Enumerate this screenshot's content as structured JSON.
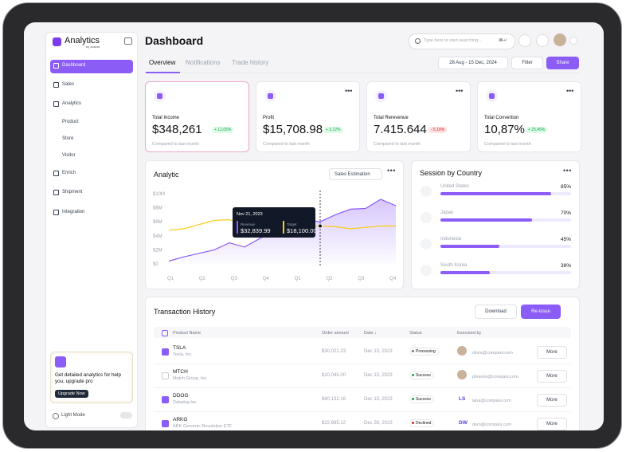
{
  "sidebar": {
    "brand": "Analytics",
    "brand_sub": "by anavid",
    "nav": [
      "Dashboard",
      "Sales",
      "Analytics",
      "Product",
      "Store",
      "Visitor",
      "Enrich",
      "Shipment",
      "Integration"
    ],
    "promo": {
      "text": "Get detailed analytics for help you, upgrade pro",
      "button": "Upgrade Now"
    },
    "theme": "Light Mode"
  },
  "header": {
    "title": "Dashboard",
    "search": "Type here to start searching...",
    "shortcut": "⌘+/",
    "tabs": [
      "Overview",
      "Notifications",
      "Trade history"
    ],
    "date_range": "28 Aug - 15 Dec, 2024",
    "filter": "Filter",
    "share": "Share"
  },
  "kpis": [
    {
      "label": "Total Income",
      "value": "$348,261",
      "change": "+ 12,05%",
      "note": "Compared to last month"
    },
    {
      "label": "Profit",
      "value": "$15,708.98",
      "change": "+ 3,12%",
      "note": "Compared to last month"
    },
    {
      "label": "Total Rerevenue",
      "value": "7.415.644",
      "change": "- 5,18%",
      "note": "Compared to last month"
    },
    {
      "label": "Total Convertion",
      "value": "10,87%",
      "change": "+ 25,45%",
      "note": "Compared to last month"
    }
  ],
  "analytic": {
    "type": "line",
    "title": "Analytic",
    "dropdown": "Sales Estimation",
    "categories": [
      "Q1",
      "Q2",
      "Q3",
      "Q4",
      "Q1",
      "Q2",
      "Q3",
      "Q4"
    ],
    "ylim": [
      0,
      10
    ],
    "yticks": [
      {
        "value": 10,
        "label": "$10M"
      },
      {
        "value": 8,
        "label": "$8M"
      },
      {
        "value": 6,
        "label": "$6M"
      },
      {
        "value": 4,
        "label": "$4M"
      },
      {
        "value": 2,
        "label": "$2M"
      },
      {
        "value": 0,
        "label": "$0"
      }
    ],
    "series": [
      {
        "name": "Revenue",
        "color": "#8b5cf6",
        "values": [
          0.4,
          1.0,
          1.5,
          2.0,
          3.0,
          2.4,
          3.6,
          4.8,
          5.8,
          6.3,
          6.0,
          7.0,
          7.8,
          7.9,
          9.2,
          8.3
        ]
      },
      {
        "name": "Target",
        "color": "#facc15",
        "values": [
          4.8,
          5.0,
          5.6,
          6.2,
          6.3,
          5.6,
          5.7,
          6.2,
          5.8,
          5.4,
          5.4,
          5.3,
          5.0,
          5.2,
          5.4,
          5.4
        ]
      }
    ],
    "tooltip": {
      "date": "Nov 21, 2023",
      "values": [
        "$32,839.99",
        "$18,100.00"
      ]
    }
  },
  "sessions": {
    "title": "Session by Country",
    "countries": [
      "United States",
      "Japan",
      "Indonesia",
      "South Korea"
    ],
    "values": [
      85,
      70,
      45,
      38
    ],
    "value_labels": [
      "85%",
      "70%",
      "45%",
      "38%"
    ],
    "xlim": [
      0,
      100
    ],
    "color": "#8b5cf6"
  },
  "transactions": {
    "title": "Transaction History",
    "actions": [
      "Download",
      "Re-issue"
    ],
    "columns": [
      "Product Name",
      "Order amount",
      "Date ↓",
      "Status",
      "Executed by"
    ],
    "more": "More",
    "rows": [
      {
        "ticker": "TSLA",
        "company": "Tesla, Inc.",
        "amount": "$30,021.23",
        "date": "Dec 13, 2023",
        "status": "Processing",
        "status_color": "#6b7280",
        "email": "olivia@compani.com",
        "checked": true
      },
      {
        "ticker": "MTCH",
        "company": "Match Group, Inc.",
        "amount": "$10,045.00",
        "date": "Dec 13, 2023",
        "status": "Success",
        "status_color": "#16a34a",
        "email": "phoenix@compani.com",
        "checked": false
      },
      {
        "ticker": "DDOG",
        "company": "Datadog Inc",
        "amount": "$40,132.16",
        "date": "Dec 13, 2023",
        "status": "Success",
        "status_color": "#16a34a",
        "initials": "LS",
        "email": "lana@compani.com",
        "checked": true
      },
      {
        "ticker": "ARKG",
        "company": "ARK Genomic Revolution ETF",
        "amount": "$22,665.12",
        "date": "Dec 28, 2023",
        "status": "Declined",
        "status_color": "#dc2626",
        "initials": "DW",
        "email": "dem@compani.com",
        "checked": true
      }
    ]
  }
}
